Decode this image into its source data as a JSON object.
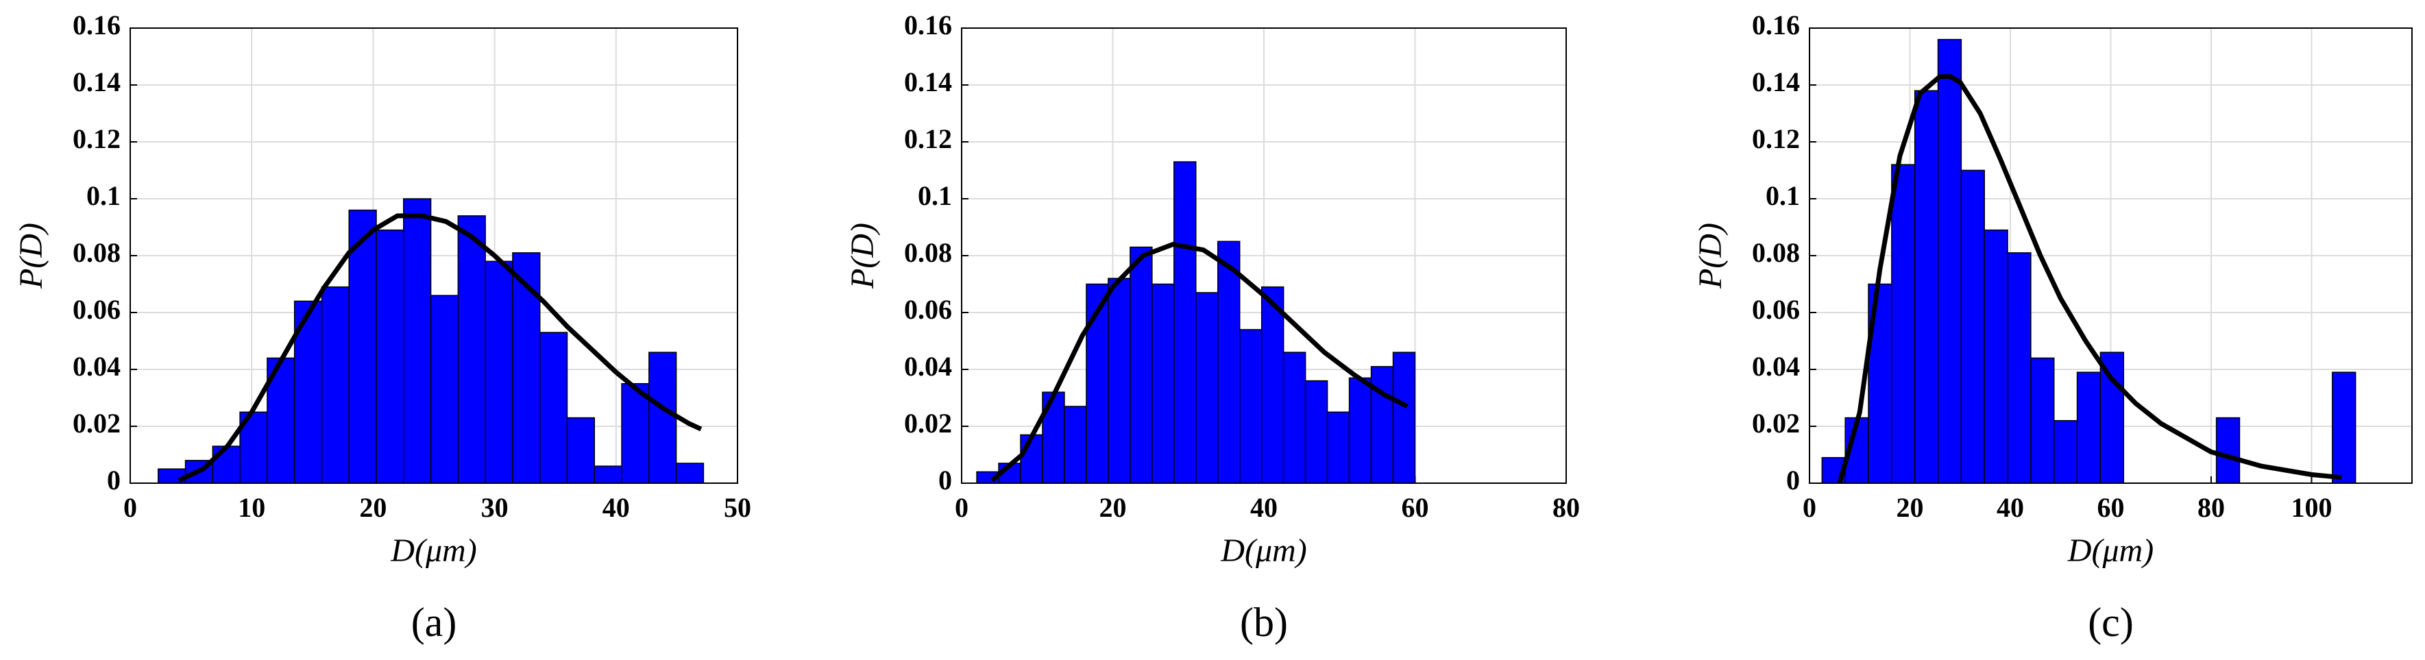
{
  "chart_data": [
    {
      "type": "histogram",
      "caption": "(a)",
      "xlabel": "D(μm)",
      "ylabel": "P(D)",
      "bins": [
        2.3,
        4.545,
        6.79,
        9.035,
        11.28,
        13.525,
        15.77,
        18.015,
        20.26,
        22.505,
        24.75,
        26.995,
        29.24,
        31.485,
        33.73,
        35.975,
        38.22,
        40.465,
        42.71,
        44.955,
        47.2
      ],
      "values": [
        0.005,
        0.008,
        0.013,
        0.025,
        0.044,
        0.064,
        0.069,
        0.096,
        0.089,
        0.1,
        0.066,
        0.094,
        0.078,
        0.081,
        0.053,
        0.023,
        0.006,
        0.035,
        0.046,
        0.007
      ],
      "color": "#0000ff",
      "fit": {
        "x": [
          4,
          6,
          8,
          10,
          12,
          14,
          16,
          18,
          20,
          22,
          24,
          26,
          28,
          30,
          32,
          34,
          36,
          38,
          40,
          42,
          44,
          46,
          47
        ],
        "y": [
          0.001,
          0.005,
          0.013,
          0.025,
          0.04,
          0.055,
          0.069,
          0.081,
          0.089,
          0.094,
          0.094,
          0.092,
          0.087,
          0.08,
          0.072,
          0.064,
          0.055,
          0.047,
          0.039,
          0.032,
          0.026,
          0.021,
          0.019
        ],
        "color": "#000000"
      },
      "xlim": [
        0,
        50
      ],
      "xticks": [
        0,
        10,
        20,
        30,
        40,
        50
      ],
      "ylim": [
        0,
        0.16
      ],
      "yticks": [
        0,
        0.02,
        0.04,
        0.06,
        0.08,
        0.1,
        0.12,
        0.14,
        0.16
      ],
      "grid": true
    },
    {
      "type": "histogram",
      "caption": "(b)",
      "xlabel": "D(μm)",
      "ylabel": "P(D)",
      "bins": [
        2,
        4.9,
        7.8,
        10.7,
        13.6,
        16.5,
        19.4,
        22.3,
        25.2,
        28.1,
        31,
        33.9,
        36.8,
        39.7,
        42.6,
        45.5,
        48.4,
        51.3,
        54.2,
        57.1,
        60
      ],
      "values": [
        0.004,
        0.007,
        0.017,
        0.032,
        0.027,
        0.07,
        0.072,
        0.083,
        0.07,
        0.113,
        0.067,
        0.085,
        0.054,
        0.069,
        0.046,
        0.036,
        0.025,
        0.037,
        0.041,
        0.046
      ],
      "color": "#0000ff",
      "fit": {
        "x": [
          4,
          8,
          12,
          16,
          20,
          24,
          28,
          32,
          36,
          40,
          44,
          48,
          52,
          56,
          59
        ],
        "y": [
          0.001,
          0.01,
          0.03,
          0.052,
          0.069,
          0.08,
          0.084,
          0.082,
          0.075,
          0.066,
          0.056,
          0.046,
          0.038,
          0.031,
          0.027
        ],
        "color": "#000000"
      },
      "xlim": [
        0,
        80
      ],
      "xticks": [
        0,
        20,
        40,
        60,
        80
      ],
      "ylim": [
        0,
        0.16
      ],
      "yticks": [
        0,
        0.02,
        0.04,
        0.06,
        0.08,
        0.1,
        0.12,
        0.14,
        0.16
      ],
      "grid": true
    },
    {
      "type": "histogram",
      "caption": "(c)",
      "xlabel": "D(μm)",
      "ylabel": "P(D)",
      "bins": [
        2.5,
        7.12,
        11.74,
        16.36,
        20.98,
        25.6,
        30.22,
        34.84,
        39.46,
        44.08,
        48.7,
        53.32,
        57.94,
        62.56,
        67.18,
        71.8,
        76.42,
        81.04,
        85.66,
        90.28,
        94.9,
        99.52,
        104.14,
        108.76
      ],
      "values": [
        0.009,
        0.023,
        0.07,
        0.112,
        0.138,
        0.156,
        0.11,
        0.089,
        0.081,
        0.044,
        0.022,
        0.039,
        0.046,
        0,
        0,
        0,
        0,
        0.023,
        0,
        0,
        0,
        0,
        0.039
      ],
      "color": "#0000ff",
      "fit": {
        "x": [
          6,
          10,
          14,
          18,
          22,
          26,
          28,
          30,
          34,
          38,
          42,
          46,
          50,
          55,
          60,
          65,
          70,
          80,
          90,
          100,
          106
        ],
        "y": [
          0,
          0.025,
          0.075,
          0.115,
          0.137,
          0.143,
          0.143,
          0.141,
          0.13,
          0.114,
          0.097,
          0.08,
          0.065,
          0.05,
          0.037,
          0.028,
          0.021,
          0.011,
          0.006,
          0.003,
          0.002
        ],
        "color": "#000000"
      },
      "xlim": [
        0,
        120
      ],
      "xticks": [
        0,
        20,
        40,
        60,
        80,
        100
      ],
      "ylim": [
        0,
        0.16
      ],
      "yticks": [
        0,
        0.02,
        0.04,
        0.06,
        0.08,
        0.1,
        0.12,
        0.14,
        0.16
      ],
      "grid": true
    }
  ]
}
